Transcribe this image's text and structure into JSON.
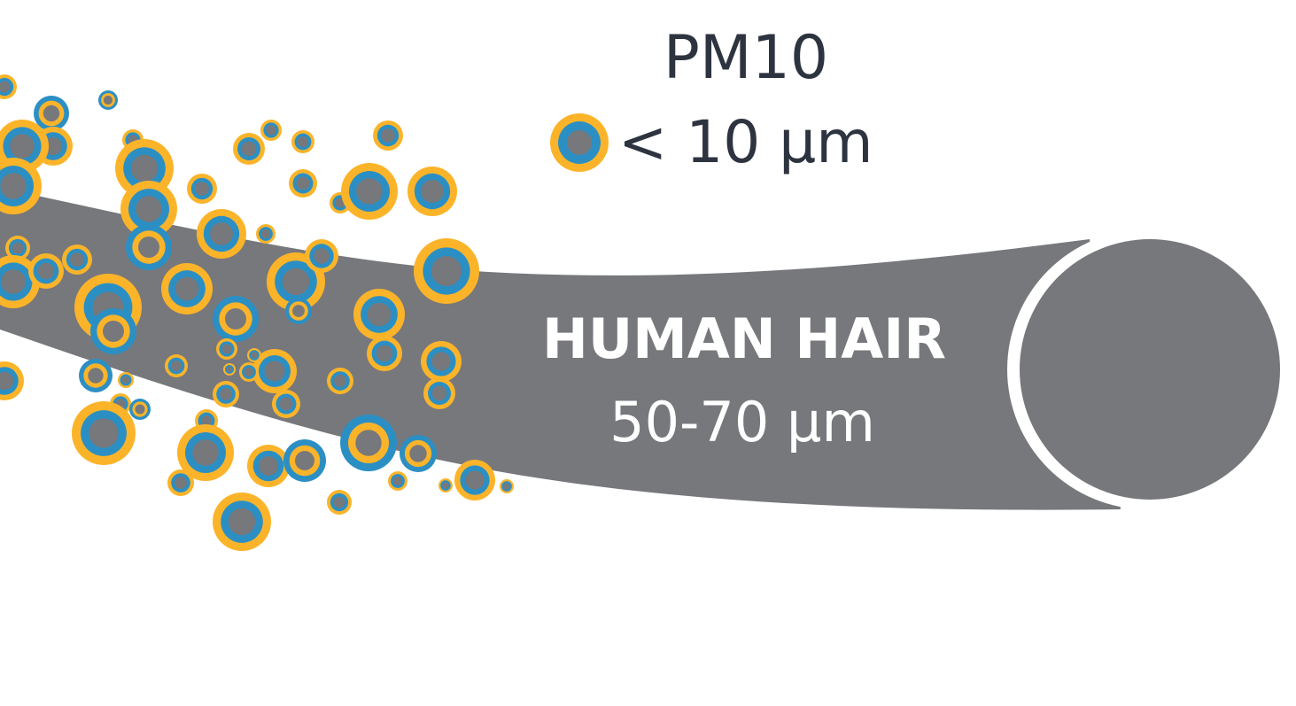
{
  "pm10": {
    "title": "PM10",
    "size_label": "< 10 μm"
  },
  "hair": {
    "title": "HUMAN HAIR",
    "size_label": "50-70 μm"
  },
  "colors": {
    "background": "#ffffff",
    "hair": "#77787c",
    "particle_outer": "#fbb429",
    "particle_blue": "#2b8fc4",
    "particle_core": "#77787c",
    "text_dark": "#2d3440",
    "text_light": "#ffffff"
  },
  "icons": {
    "legend_marker": "pm10-particle-icon",
    "particle": "particle-icon"
  }
}
